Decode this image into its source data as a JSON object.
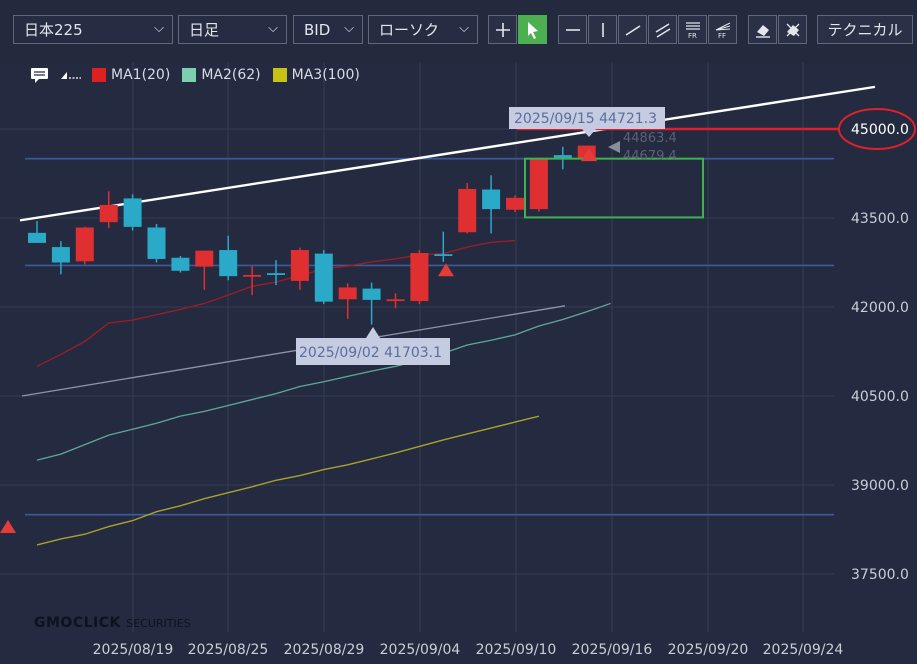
{
  "toolbar": {
    "symbol": "日本225",
    "timeframe": "日足",
    "price_type": "BID",
    "chart_type": "ローソク",
    "technical_label": "テクニカル",
    "tools": [
      "crosshair",
      "pointer",
      "horizontal-line",
      "vertical-line",
      "trend-line",
      "parallel-channel",
      "fibonacci-retracement",
      "fibonacci-fan",
      "eraser",
      "delete-all"
    ],
    "fib_labels": [
      "FR",
      "FF"
    ]
  },
  "legend": [
    {
      "label": "MA1(20)",
      "color": "#e02020"
    },
    {
      "label": "MA2(62)",
      "color": "#7ecfb0"
    },
    {
      "label": "MA3(100)",
      "color": "#c8c214"
    }
  ],
  "chart_data": {
    "type": "candlestick",
    "y_axis": {
      "ticks": [
        37500.0,
        39000.0,
        40500.0,
        42000.0,
        43500.0,
        45000.0
      ],
      "tick_labels": [
        "37500.0",
        "39000.0",
        "40500.0",
        "42000.0",
        "43500.0",
        "45000.0"
      ]
    },
    "x_axis": {
      "tick_labels": [
        "2025/08/19",
        "2025/08/25",
        "2025/08/29",
        "2025/09/04",
        "2025/09/10",
        "2025/09/16",
        "2025/09/20",
        "2025/09/24"
      ]
    },
    "candles": [
      {
        "o": 43250,
        "h": 43450,
        "l": 43080,
        "c": 43080,
        "color": "blue"
      },
      {
        "o": 43010,
        "h": 43110,
        "l": 42550,
        "c": 42750,
        "color": "blue"
      },
      {
        "o": 42770,
        "h": 43350,
        "l": 42720,
        "c": 43340,
        "color": "red"
      },
      {
        "o": 43430,
        "h": 43950,
        "l": 43330,
        "c": 43720,
        "color": "red"
      },
      {
        "o": 43830,
        "h": 43900,
        "l": 43290,
        "c": 43350,
        "color": "blue"
      },
      {
        "o": 43340,
        "h": 43400,
        "l": 42750,
        "c": 42810,
        "color": "blue"
      },
      {
        "o": 42830,
        "h": 42860,
        "l": 42580,
        "c": 42610,
        "color": "blue"
      },
      {
        "o": 42680,
        "h": 42950,
        "l": 42290,
        "c": 42950,
        "color": "red"
      },
      {
        "o": 42960,
        "h": 43200,
        "l": 42450,
        "c": 42520,
        "color": "blue"
      },
      {
        "o": 42540,
        "h": 42690,
        "l": 42200,
        "c": 42540,
        "color": "red"
      },
      {
        "o": 42540,
        "h": 42790,
        "l": 42370,
        "c": 42570,
        "color": "blue"
      },
      {
        "o": 42440,
        "h": 43000,
        "l": 42290,
        "c": 42960,
        "color": "red"
      },
      {
        "o": 42900,
        "h": 42960,
        "l": 42050,
        "c": 42090,
        "color": "blue"
      },
      {
        "o": 42130,
        "h": 42400,
        "l": 41800,
        "c": 42330,
        "color": "red"
      },
      {
        "o": 42310,
        "h": 42410,
        "l": 41703.1,
        "c": 42120,
        "color": "blue"
      },
      {
        "o": 42130,
        "h": 42230,
        "l": 41980,
        "c": 42130,
        "color": "red"
      },
      {
        "o": 42100,
        "h": 42960,
        "l": 42050,
        "c": 42910,
        "color": "red"
      },
      {
        "o": 42890,
        "h": 43270,
        "l": 42760,
        "c": 42870,
        "color": "blue"
      },
      {
        "o": 43260,
        "h": 44090,
        "l": 43240,
        "c": 43990,
        "color": "red"
      },
      {
        "o": 43980,
        "h": 44220,
        "l": 43240,
        "c": 43650,
        "color": "blue"
      },
      {
        "o": 43640,
        "h": 43880,
        "l": 43600,
        "c": 43840,
        "color": "red"
      },
      {
        "o": 43650,
        "h": 44520,
        "l": 43610,
        "c": 44510,
        "color": "red"
      },
      {
        "o": 44500,
        "h": 44700,
        "l": 44320,
        "c": 44560,
        "color": "blue"
      },
      {
        "o": 44500,
        "h": 44721.3,
        "l": 44480,
        "c": 44720,
        "color": "red"
      }
    ],
    "moving_averages": {
      "MA1(20)": [
        41000,
        41200,
        41420,
        41730,
        41780,
        41870,
        41960,
        42060,
        42200,
        42350,
        42420,
        42530,
        42640,
        42690,
        42760,
        42810,
        42880,
        42900,
        43010,
        43090,
        43120
      ],
      "MA2(62)": [
        39420,
        39520,
        39680,
        39840,
        39940,
        40040,
        40160,
        40240,
        40340,
        40440,
        40540,
        40660,
        40740,
        40830,
        40920,
        41000,
        41100,
        41220,
        41360,
        41440,
        41530,
        41680,
        41790,
        41920,
        42060
      ],
      "MA3(100)": [
        37990,
        38090,
        38170,
        38300,
        38400,
        38550,
        38650,
        38770,
        38870,
        38970,
        39080,
        39160,
        39260,
        39340,
        39440,
        39540,
        39650,
        39760,
        39860,
        39960,
        40060,
        40160
      ]
    },
    "annotations": {
      "high_label": "2025/09/15 44721.3",
      "low_label": "2025/09/02 41703.1",
      "right_price_labels": [
        "44863.4",
        "44679.4"
      ],
      "horizontal_lines": [
        44500,
        42700,
        38500
      ],
      "highlighted_price": 45000.0
    }
  },
  "watermark": {
    "brand": "GMOCLICK",
    "suffix": "SECURITIES"
  }
}
